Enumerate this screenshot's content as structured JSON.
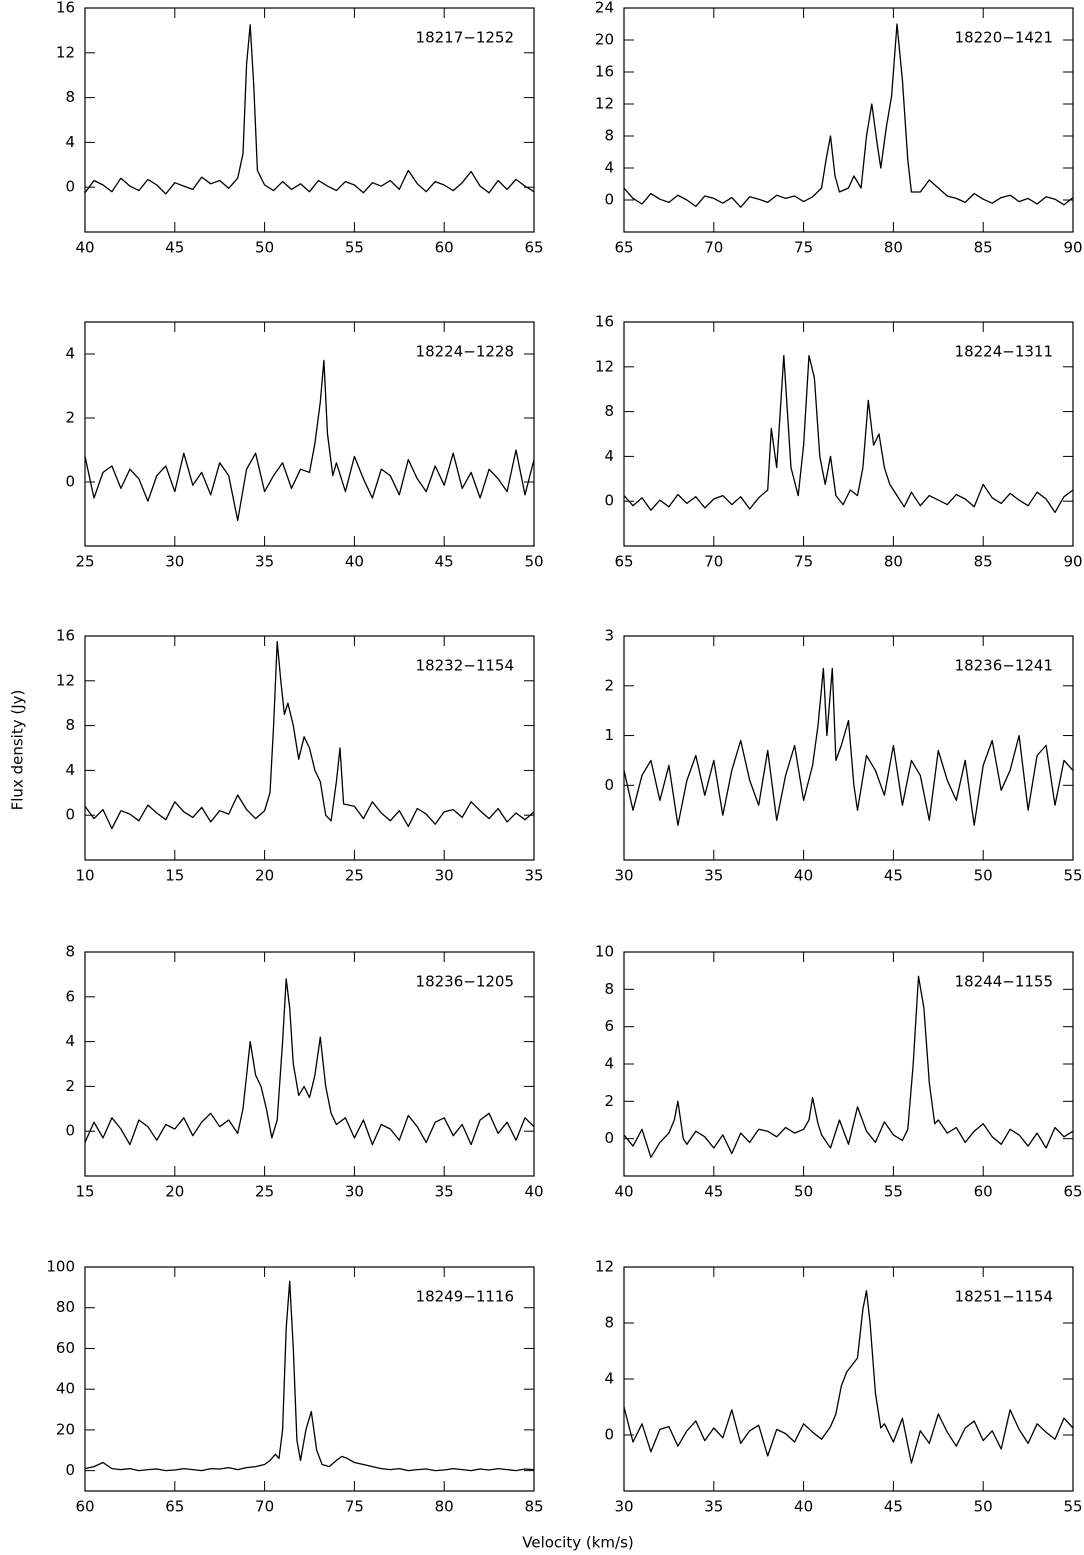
{
  "xlabel": "Velocity (km/s)",
  "ylabel": "Flux density (Jy)",
  "chart_data": [
    {
      "type": "line",
      "title": "18217−1252",
      "xlim": [
        40,
        65
      ],
      "xticks": [
        40,
        45,
        50,
        55,
        60,
        65
      ],
      "ylim": [
        -4,
        16
      ],
      "yticks": [
        0,
        4,
        8,
        12,
        16
      ],
      "x": [
        40,
        40.5,
        41,
        41.5,
        42,
        42.5,
        43,
        43.5,
        44,
        44.5,
        45,
        45.5,
        46,
        46.5,
        47,
        47.5,
        48,
        48.5,
        48.8,
        49,
        49.2,
        49.4,
        49.6,
        50,
        50.5,
        51,
        51.5,
        52,
        52.5,
        53,
        53.5,
        54,
        54.5,
        55,
        55.5,
        56,
        56.5,
        57,
        57.5,
        58,
        58.5,
        59,
        59.5,
        60,
        60.5,
        61,
        61.5,
        62,
        62.5,
        63,
        63.5,
        64,
        64.5,
        65
      ],
      "values": [
        -0.5,
        0.6,
        0.2,
        -0.4,
        0.8,
        0.1,
        -0.3,
        0.7,
        0.2,
        -0.6,
        0.4,
        0.1,
        -0.2,
        0.9,
        0.3,
        0.6,
        -0.1,
        0.8,
        3,
        11,
        14.5,
        9,
        1.5,
        0.2,
        -0.3,
        0.5,
        -0.2,
        0.3,
        -0.4,
        0.6,
        0.1,
        -0.3,
        0.5,
        0.2,
        -0.5,
        0.4,
        0.1,
        0.6,
        -0.2,
        1.5,
        0.3,
        -0.4,
        0.5,
        0.2,
        -0.3,
        0.4,
        1.4,
        0.1,
        -0.5,
        0.6,
        -0.2,
        0.7,
        0.1,
        -0.4
      ]
    },
    {
      "type": "line",
      "title": "18220−1421",
      "xlim": [
        65,
        90
      ],
      "xticks": [
        65,
        70,
        75,
        80,
        85,
        90
      ],
      "ylim": [
        -4,
        24
      ],
      "yticks": [
        0,
        4,
        8,
        12,
        16,
        20,
        24
      ],
      "x": [
        65,
        65.5,
        66,
        66.5,
        67,
        67.5,
        68,
        68.5,
        69,
        69.5,
        70,
        70.5,
        71,
        71.5,
        72,
        72.5,
        73,
        73.5,
        74,
        74.5,
        75,
        75.5,
        76,
        76.25,
        76.5,
        76.75,
        77,
        77.5,
        77.8,
        78.2,
        78.5,
        78.8,
        79.1,
        79.3,
        79.6,
        79.9,
        80.2,
        80.5,
        80.8,
        81,
        81.5,
        82,
        82.5,
        83,
        83.5,
        84,
        84.5,
        85,
        85.5,
        86,
        86.5,
        87,
        87.5,
        88,
        88.5,
        89,
        89.5,
        90
      ],
      "values": [
        1.5,
        0.2,
        -0.5,
        0.8,
        0.1,
        -0.3,
        0.6,
        0,
        -0.8,
        0.5,
        0.2,
        -0.4,
        0.3,
        -0.9,
        0.4,
        0.1,
        -0.3,
        0.6,
        0.2,
        0.5,
        -0.2,
        0.4,
        1.5,
        5,
        8,
        3,
        1,
        1.5,
        3,
        1.5,
        8,
        12,
        7,
        4,
        9,
        13,
        22,
        15,
        5,
        1,
        1,
        2.5,
        1.5,
        0.5,
        0.2,
        -0.3,
        0.8,
        0.1,
        -0.4,
        0.3,
        0.6,
        -0.2,
        0.2,
        -0.5,
        0.4,
        0.1,
        -0.6,
        0.3
      ]
    },
    {
      "type": "line",
      "title": "18224−1228",
      "xlim": [
        25,
        50
      ],
      "xticks": [
        25,
        30,
        35,
        40,
        45,
        50
      ],
      "ylim": [
        -2,
        5
      ],
      "yticks": [
        0,
        2,
        4
      ],
      "x": [
        25,
        25.5,
        26,
        26.5,
        27,
        27.5,
        28,
        28.5,
        29,
        29.5,
        30,
        30.5,
        31,
        31.5,
        32,
        32.5,
        33,
        33.5,
        34,
        34.5,
        35,
        35.5,
        36,
        36.5,
        37,
        37.5,
        37.8,
        38.1,
        38.3,
        38.5,
        38.8,
        39,
        39.5,
        40,
        40.5,
        41,
        41.5,
        42,
        42.5,
        43,
        43.5,
        44,
        44.5,
        45,
        45.5,
        46,
        46.5,
        47,
        47.5,
        48,
        48.5,
        49,
        49.5,
        50
      ],
      "values": [
        0.8,
        -0.5,
        0.3,
        0.5,
        -0.2,
        0.4,
        0.1,
        -0.6,
        0.2,
        0.5,
        -0.3,
        0.9,
        -0.1,
        0.3,
        -0.4,
        0.6,
        0.2,
        -1.2,
        0.4,
        0.9,
        -0.3,
        0.2,
        0.6,
        -0.2,
        0.4,
        0.3,
        1.2,
        2.5,
        3.8,
        1.5,
        0.2,
        0.6,
        -0.3,
        0.8,
        0.1,
        -0.5,
        0.4,
        0.2,
        -0.4,
        0.7,
        0.1,
        -0.3,
        0.5,
        -0.1,
        0.9,
        -0.2,
        0.3,
        -0.5,
        0.4,
        0.1,
        -0.3,
        1,
        -0.4,
        0.7
      ]
    },
    {
      "type": "line",
      "title": "18224−1311",
      "xlim": [
        65,
        90
      ],
      "xticks": [
        65,
        70,
        75,
        80,
        85,
        90
      ],
      "ylim": [
        -4,
        16
      ],
      "yticks": [
        0,
        4,
        8,
        12,
        16
      ],
      "x": [
        65,
        65.5,
        66,
        66.5,
        67,
        67.5,
        68,
        68.5,
        69,
        69.5,
        70,
        70.5,
        71,
        71.5,
        72,
        72.5,
        73,
        73.2,
        73.5,
        73.9,
        74.3,
        74.7,
        75,
        75.3,
        75.6,
        75.9,
        76.2,
        76.5,
        76.8,
        77.2,
        77.6,
        78,
        78.3,
        78.6,
        78.9,
        79.2,
        79.5,
        79.8,
        80.2,
        80.6,
        81,
        81.5,
        82,
        82.5,
        83,
        83.5,
        84,
        84.5,
        85,
        85.5,
        86,
        86.5,
        87,
        87.5,
        88,
        88.5,
        89,
        89.5,
        90
      ],
      "values": [
        0.5,
        -0.4,
        0.3,
        -0.8,
        0.1,
        -0.5,
        0.6,
        -0.2,
        0.4,
        -0.6,
        0.2,
        0.5,
        -0.3,
        0.4,
        -0.7,
        0.3,
        1,
        6.5,
        3,
        13,
        3,
        0.5,
        5,
        13,
        11,
        4,
        1.5,
        4,
        0.5,
        -0.3,
        1,
        0.5,
        3,
        9,
        5,
        6,
        3,
        1.5,
        0.5,
        -0.5,
        0.8,
        -0.4,
        0.5,
        0.1,
        -0.3,
        0.6,
        0.2,
        -0.5,
        1.5,
        0.3,
        -0.2,
        0.7,
        0.1,
        -0.4,
        0.8,
        0.2,
        -1,
        0.4,
        1
      ]
    },
    {
      "type": "line",
      "title": "18232−1154",
      "xlim": [
        10,
        35
      ],
      "xticks": [
        10,
        15,
        20,
        25,
        30,
        35
      ],
      "ylim": [
        -4,
        16
      ],
      "yticks": [
        0,
        4,
        8,
        12,
        16
      ],
      "x": [
        10,
        10.5,
        11,
        11.5,
        12,
        12.5,
        13,
        13.5,
        14,
        14.5,
        15,
        15.5,
        16,
        16.5,
        17,
        17.5,
        18,
        18.5,
        19,
        19.5,
        20,
        20.3,
        20.5,
        20.7,
        20.9,
        21.1,
        21.3,
        21.6,
        21.9,
        22.2,
        22.5,
        22.8,
        23.1,
        23.4,
        23.7,
        24,
        24.2,
        24.4,
        25,
        25.5,
        26,
        26.5,
        27,
        27.5,
        28,
        28.5,
        29,
        29.5,
        30,
        30.5,
        31,
        31.5,
        32,
        32.5,
        33,
        33.5,
        34,
        34.5,
        35
      ],
      "values": [
        0.8,
        -0.3,
        0.5,
        -1.2,
        0.4,
        0.1,
        -0.5,
        0.9,
        0.2,
        -0.4,
        1.2,
        0.3,
        -0.2,
        0.7,
        -0.6,
        0.4,
        0.1,
        1.8,
        0.5,
        -0.3,
        0.4,
        2,
        8,
        15.5,
        12,
        9,
        10,
        8,
        5,
        7,
        6,
        4,
        3,
        0,
        -0.5,
        3,
        6,
        1,
        0.8,
        -0.3,
        1.2,
        0.2,
        -0.5,
        0.4,
        -1,
        0.6,
        0.1,
        -0.8,
        0.3,
        0.5,
        -0.2,
        1.2,
        0.4,
        -0.3,
        0.6,
        -0.6,
        0.2,
        -0.4,
        0.3
      ]
    },
    {
      "type": "line",
      "title": "18236−1241",
      "xlim": [
        30,
        55
      ],
      "xticks": [
        30,
        35,
        40,
        45,
        50,
        55
      ],
      "ylim": [
        -1.5,
        3
      ],
      "yticks": [
        0,
        1,
        2,
        3
      ],
      "x": [
        30,
        30.5,
        31,
        31.5,
        32,
        32.5,
        33,
        33.5,
        34,
        34.5,
        35,
        35.5,
        36,
        36.5,
        37,
        37.5,
        38,
        38.5,
        39,
        39.5,
        40,
        40.5,
        40.8,
        41.1,
        41.3,
        41.6,
        41.8,
        42.1,
        42.5,
        42.8,
        43,
        43.5,
        44,
        44.5,
        45,
        45.5,
        46,
        46.5,
        47,
        47.5,
        48,
        48.5,
        49,
        49.5,
        50,
        50.5,
        51,
        51.5,
        52,
        52.5,
        53,
        53.5,
        54,
        54.5,
        55
      ],
      "values": [
        0.3,
        -0.5,
        0.2,
        0.5,
        -0.3,
        0.4,
        -0.8,
        0.1,
        0.6,
        -0.2,
        0.5,
        -0.6,
        0.3,
        0.9,
        0.1,
        -0.4,
        0.7,
        -0.7,
        0.2,
        0.8,
        -0.3,
        0.4,
        1.2,
        2.35,
        1,
        2.35,
        0.5,
        0.8,
        1.3,
        0,
        -0.5,
        0.6,
        0.3,
        -0.2,
        0.8,
        -0.4,
        0.5,
        0.2,
        -0.7,
        0.7,
        0.1,
        -0.3,
        0.5,
        -0.8,
        0.4,
        0.9,
        -0.1,
        0.3,
        1,
        -0.5,
        0.6,
        0.8,
        -0.4,
        0.5,
        0.3
      ]
    },
    {
      "type": "line",
      "title": "18236−1205",
      "xlim": [
        15,
        40
      ],
      "xticks": [
        15,
        20,
        25,
        30,
        35,
        40
      ],
      "ylim": [
        -2,
        8
      ],
      "yticks": [
        0,
        2,
        4,
        6,
        8
      ],
      "x": [
        15,
        15.5,
        16,
        16.5,
        17,
        17.5,
        18,
        18.5,
        19,
        19.5,
        20,
        20.5,
        21,
        21.5,
        22,
        22.5,
        23,
        23.5,
        23.8,
        24,
        24.2,
        24.5,
        24.8,
        25.1,
        25.4,
        25.7,
        26,
        26.2,
        26.4,
        26.6,
        26.9,
        27.2,
        27.5,
        27.8,
        28.1,
        28.4,
        28.7,
        29,
        29.5,
        30,
        30.5,
        31,
        31.5,
        32,
        32.5,
        33,
        33.5,
        34,
        34.5,
        35,
        35.5,
        36,
        36.5,
        37,
        37.5,
        38,
        38.5,
        39,
        39.5,
        40
      ],
      "values": [
        -0.5,
        0.4,
        -0.3,
        0.6,
        0.1,
        -0.6,
        0.5,
        0.2,
        -0.4,
        0.3,
        0.1,
        0.6,
        -0.2,
        0.4,
        0.8,
        0.2,
        0.5,
        -0.1,
        1,
        2.5,
        4,
        2.5,
        2,
        1,
        -0.3,
        0.5,
        4,
        6.8,
        5.5,
        3,
        1.6,
        2,
        1.5,
        2.5,
        4.2,
        2,
        0.8,
        0.3,
        0.6,
        -0.3,
        0.5,
        -0.6,
        0.3,
        0.1,
        -0.4,
        0.7,
        0.2,
        -0.5,
        0.4,
        0.6,
        -0.2,
        0.3,
        -0.6,
        0.5,
        0.8,
        -0.1,
        0.4,
        -0.4,
        0.6,
        0.2
      ]
    },
    {
      "type": "line",
      "title": "18244−1155",
      "xlim": [
        40,
        65
      ],
      "xticks": [
        40,
        45,
        50,
        55,
        60,
        65
      ],
      "ylim": [
        -2,
        10
      ],
      "yticks": [
        0,
        2,
        4,
        6,
        8,
        10
      ],
      "x": [
        40,
        40.5,
        41,
        41.5,
        42,
        42.5,
        42.8,
        43,
        43.3,
        43.5,
        44,
        44.5,
        45,
        45.5,
        46,
        46.5,
        47,
        47.5,
        48,
        48.5,
        49,
        49.5,
        50,
        50.3,
        50.5,
        50.8,
        51,
        51.5,
        52,
        52.5,
        53,
        53.5,
        54,
        54.5,
        55,
        55.5,
        55.8,
        56.1,
        56.4,
        56.7,
        57,
        57.3,
        57.5,
        58,
        58.5,
        59,
        59.5,
        60,
        60.5,
        61,
        61.5,
        62,
        62.5,
        63,
        63.5,
        64,
        64.5,
        65
      ],
      "values": [
        0.2,
        -0.4,
        0.5,
        -1,
        -0.2,
        0.3,
        1,
        2,
        0,
        -0.3,
        0.4,
        0.1,
        -0.5,
        0.2,
        -0.8,
        0.3,
        -0.2,
        0.5,
        0.4,
        0.1,
        0.6,
        0.3,
        0.5,
        1,
        2.2,
        0.8,
        0.2,
        -0.5,
        1,
        -0.3,
        1.7,
        0.4,
        -0.2,
        0.9,
        0.2,
        -0.1,
        0.5,
        4,
        8.7,
        7,
        3,
        0.8,
        1,
        0.3,
        0.6,
        -0.2,
        0.4,
        0.8,
        0.1,
        -0.3,
        0.5,
        0.2,
        -0.4,
        0.3,
        -0.5,
        0.6,
        0.1,
        0.4
      ]
    },
    {
      "type": "line",
      "title": "18249−1116",
      "xlim": [
        60,
        85
      ],
      "xticks": [
        60,
        65,
        70,
        75,
        80,
        85
      ],
      "ylim": [
        -10,
        100
      ],
      "yticks": [
        0,
        20,
        40,
        60,
        80,
        100
      ],
      "x": [
        60,
        60.5,
        61,
        61.5,
        62,
        62.5,
        63,
        63.5,
        64,
        64.5,
        65,
        65.5,
        66,
        66.5,
        67,
        67.5,
        68,
        68.5,
        69,
        69.5,
        70,
        70.3,
        70.6,
        70.8,
        71,
        71.2,
        71.4,
        71.6,
        71.8,
        72,
        72.3,
        72.6,
        72.9,
        73.2,
        73.6,
        74,
        74.3,
        74.6,
        75,
        75.5,
        76,
        76.5,
        77,
        77.5,
        78,
        78.5,
        79,
        79.5,
        80,
        80.5,
        81,
        81.5,
        82,
        82.5,
        83,
        83.5,
        84,
        84.5,
        85
      ],
      "values": [
        1,
        2,
        4,
        1,
        0.5,
        1,
        0,
        0.5,
        0.8,
        0,
        0.3,
        1,
        0.5,
        0,
        1,
        0.8,
        1.5,
        0.5,
        1.5,
        2,
        3,
        5,
        8,
        6,
        20,
        70,
        93,
        60,
        15,
        5,
        20,
        29,
        10,
        3,
        2,
        5,
        7,
        6,
        4,
        3,
        2,
        1,
        0.5,
        1,
        0,
        0.5,
        0.8,
        0,
        0.3,
        1,
        0.5,
        0,
        0.8,
        0.3,
        1,
        0.5,
        0,
        0.8,
        0.5
      ]
    },
    {
      "type": "line",
      "title": "18251−1154",
      "xlim": [
        30,
        55
      ],
      "xticks": [
        30,
        35,
        40,
        45,
        50,
        55
      ],
      "ylim": [
        -4,
        12
      ],
      "yticks": [
        0,
        4,
        8,
        12
      ],
      "x": [
        30,
        30.5,
        31,
        31.5,
        32,
        32.5,
        33,
        33.5,
        34,
        34.5,
        35,
        35.5,
        36,
        36.5,
        37,
        37.5,
        38,
        38.5,
        39,
        39.5,
        40,
        40.5,
        41,
        41.5,
        41.8,
        42.1,
        42.4,
        42.7,
        43,
        43.3,
        43.5,
        43.7,
        44,
        44.3,
        44.5,
        45,
        45.5,
        46,
        46.5,
        47,
        47.5,
        48,
        48.5,
        49,
        49.5,
        50,
        50.5,
        51,
        51.5,
        52,
        52.5,
        53,
        53.5,
        54,
        54.5,
        55
      ],
      "values": [
        2,
        -0.5,
        0.8,
        -1.2,
        0.4,
        0.6,
        -0.8,
        0.3,
        1,
        -0.4,
        0.5,
        -0.2,
        1.8,
        -0.6,
        0.3,
        0.7,
        -1.5,
        0.4,
        0.1,
        -0.5,
        0.8,
        0.2,
        -0.3,
        0.6,
        1.5,
        3.5,
        4.5,
        5,
        5.5,
        9,
        10.3,
        8,
        3,
        0.5,
        0.8,
        -0.5,
        1.2,
        -2,
        0.3,
        -0.6,
        1.5,
        0.2,
        -0.8,
        0.5,
        1,
        -0.4,
        0.3,
        -1,
        1.8,
        0.4,
        -0.6,
        0.8,
        0.2,
        -0.3,
        1.2,
        0.5
      ]
    }
  ]
}
